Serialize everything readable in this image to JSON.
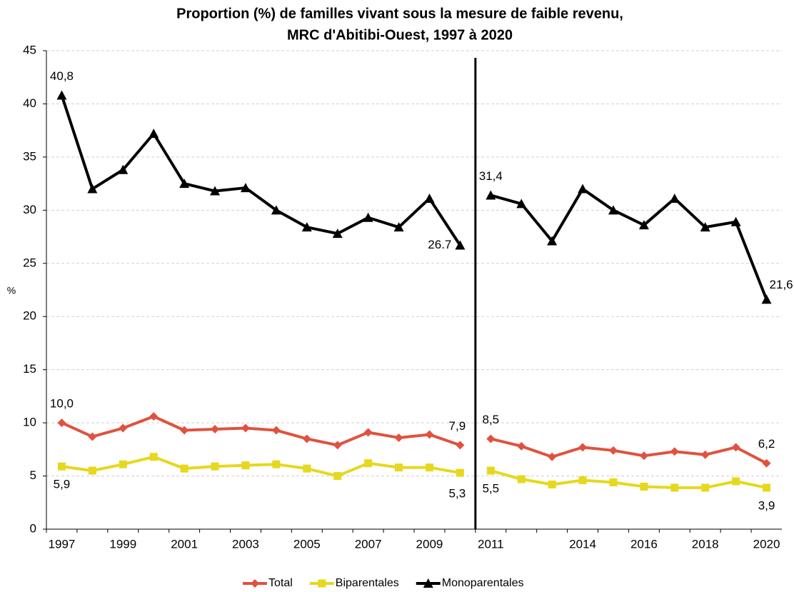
{
  "chart_data": {
    "type": "line",
    "title": "Proportion (%) de familles vivant sous la mesure de faible revenu,",
    "subtitle": "MRC d'Abitibi-Ouest, 1997 à 2020",
    "y_label": "%",
    "categories": [
      "1997",
      null,
      "1999",
      null,
      "2001",
      null,
      "2003",
      null,
      "2005",
      null,
      "2007",
      null,
      "2009",
      null,
      "2011",
      null,
      null,
      "2014",
      null,
      "2016",
      null,
      "2018",
      null,
      "2020"
    ],
    "break_after": 13,
    "series": [
      {
        "name": "Total",
        "color": "#e0523f",
        "marker": "diamond",
        "values": [
          10.0,
          8.7,
          9.5,
          10.6,
          9.3,
          9.4,
          9.5,
          9.3,
          8.5,
          7.9,
          9.1,
          8.6,
          8.9,
          7.9,
          8.5,
          7.8,
          6.8,
          7.7,
          7.4,
          6.9,
          7.3,
          7.0,
          7.7,
          6.2
        ],
        "value_labels": [
          "10,0",
          null,
          null,
          null,
          null,
          null,
          null,
          null,
          null,
          null,
          null,
          null,
          null,
          "7,9",
          "8,5",
          null,
          null,
          null,
          null,
          null,
          null,
          null,
          null,
          "6,2"
        ]
      },
      {
        "name": "Biparentales",
        "color": "#e6d81e",
        "marker": "square",
        "values": [
          5.9,
          5.5,
          6.1,
          6.8,
          5.7,
          5.9,
          6.0,
          6.1,
          5.7,
          5.0,
          6.2,
          5.8,
          5.8,
          5.3,
          5.5,
          4.7,
          4.2,
          4.6,
          4.4,
          4.0,
          3.9,
          3.9,
          4.5,
          3.9
        ],
        "value_labels": [
          "5,9",
          null,
          null,
          null,
          null,
          null,
          null,
          null,
          null,
          null,
          null,
          null,
          null,
          "5,3",
          "5,5",
          null,
          null,
          null,
          null,
          null,
          null,
          null,
          null,
          "3,9"
        ]
      },
      {
        "name": "Monoparentales",
        "color": "#000000",
        "marker": "triangle",
        "values": [
          40.8,
          32.0,
          33.8,
          37.2,
          32.5,
          31.8,
          32.1,
          30.0,
          28.4,
          27.8,
          29.3,
          28.4,
          31.1,
          26.7,
          31.4,
          30.6,
          27.1,
          32.0,
          30.0,
          28.6,
          31.1,
          28.4,
          28.9,
          21.6
        ],
        "value_labels": [
          "40,8",
          null,
          null,
          null,
          null,
          null,
          null,
          null,
          null,
          null,
          null,
          null,
          null,
          "26.7",
          "31,4",
          null,
          null,
          null,
          null,
          null,
          null,
          null,
          null,
          "21,6"
        ]
      }
    ],
    "ylim": [
      0,
      45
    ],
    "yticks": [
      0,
      5,
      10,
      15,
      20,
      25,
      30,
      35,
      40,
      45
    ],
    "grid": true,
    "legend": "bottom"
  }
}
